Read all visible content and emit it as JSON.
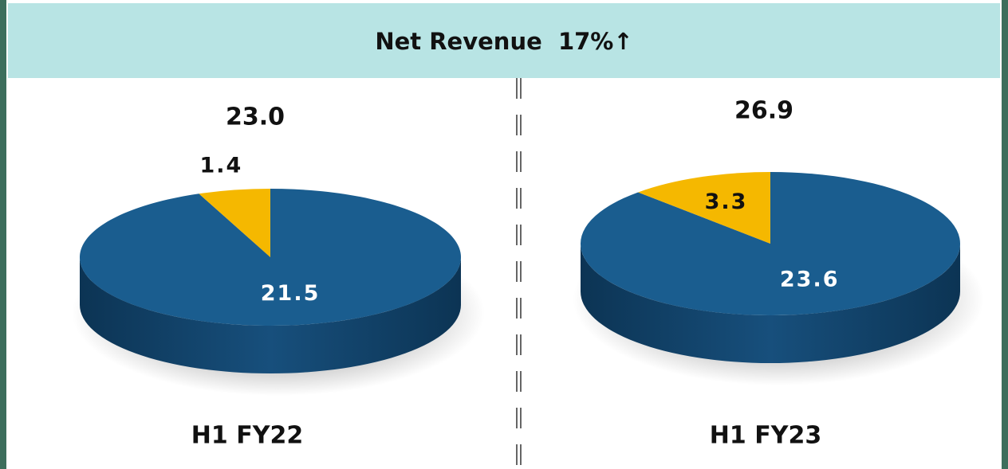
{
  "header": {
    "title": "Net Revenue  17%↑"
  },
  "chart_data": [
    {
      "type": "pie",
      "total": {
        "value": 23.0,
        "label": "23.0"
      },
      "label": "H1 FY22",
      "values": [
        21.5,
        1.4
      ],
      "colors": [
        "#1a5d8f",
        "#f5b800"
      ]
    },
    {
      "type": "pie",
      "total": {
        "value": 26.9,
        "label": "26.9"
      },
      "label": "H1 FY23",
      "values": [
        23.6,
        3.3
      ],
      "colors": [
        "#1a5d8f",
        "#f5b800"
      ]
    }
  ]
}
